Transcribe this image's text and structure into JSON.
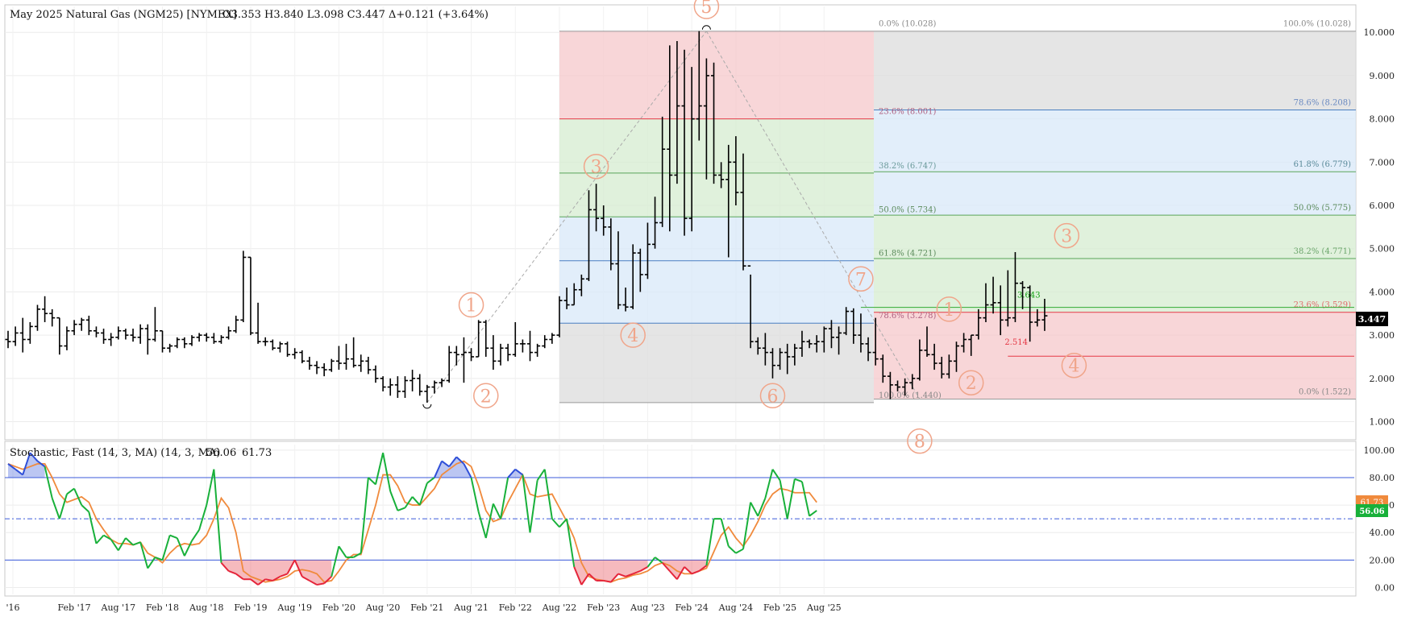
{
  "header": {
    "instrument": "May 2025 Natural Gas (NGM25) [NYMEX]",
    "ohlc_text": "O3.353  H3.840  L3.098  C3.447  Δ+0.121 (+3.64%)"
  },
  "last_price_tag": "3.447",
  "stoch_header": {
    "label": "Stochastic, Fast (14, 3, MA)  (14, 3, MA)",
    "k_text": "56.06",
    "d_text": "61.73"
  },
  "stoch_k_tag": "56.06",
  "stoch_d_tag": "61.73",
  "colors": {
    "up_text": "#11a011",
    "down_text": "#e8702a",
    "stoch_k": "#18b03a",
    "stoch_d": "#f08a3c",
    "overbought_fill": "#3b5bdb",
    "oversold_fill": "#e53946",
    "wave_label": "#f0a58a",
    "fib_red_zone": "#f6c8cb",
    "fib_green_zone": "#d6ecd0",
    "fib_blue_zone": "#d8e8f8",
    "fib_gray_zone": "#dcdcdc"
  },
  "chart_data": [
    {
      "type": "ohlc",
      "name": "price",
      "title": "May 2025 Natural Gas (NGM25) [NYMEX]",
      "x_tick_labels": [
        "'16",
        "Feb '17",
        "Aug '17",
        "Feb '18",
        "Aug '18",
        "Feb '19",
        "Aug '19",
        "Feb '20",
        "Aug '20",
        "Feb '21",
        "Aug '21",
        "Feb '22",
        "Aug '22",
        "Feb '23",
        "Aug '23",
        "Feb '24",
        "Aug '24",
        "Feb '25",
        "Aug '25"
      ],
      "y_ticks": [
        "1.000",
        "2.000",
        "3.000",
        "4.000",
        "5.000",
        "6.000",
        "7.000",
        "8.000",
        "9.000",
        "10.000"
      ],
      "ylim": [
        0.6,
        10.6
      ],
      "grid": true,
      "bars_monthly": [
        [
          2.9,
          3.1,
          2.7,
          2.85
        ],
        [
          2.85,
          3.2,
          2.75,
          3.05
        ],
        [
          3.05,
          3.4,
          2.6,
          2.9
        ],
        [
          2.9,
          3.3,
          2.8,
          3.2
        ],
        [
          3.2,
          3.7,
          3.1,
          3.6
        ],
        [
          3.6,
          3.9,
          3.3,
          3.5
        ],
        [
          3.5,
          3.6,
          3.2,
          3.4
        ],
        [
          3.4,
          3.4,
          2.55,
          2.75
        ],
        [
          2.75,
          3.2,
          2.65,
          3.1
        ],
        [
          3.1,
          3.35,
          3.0,
          3.25
        ],
        [
          3.25,
          3.4,
          3.1,
          3.35
        ],
        [
          3.35,
          3.45,
          3.0,
          3.1
        ],
        [
          3.1,
          3.2,
          2.95,
          3.05
        ],
        [
          3.05,
          3.15,
          2.8,
          2.9
        ],
        [
          2.9,
          3.05,
          2.75,
          2.95
        ],
        [
          2.95,
          3.2,
          2.9,
          3.1
        ],
        [
          3.1,
          3.15,
          2.9,
          3.0
        ],
        [
          3.0,
          3.15,
          2.85,
          2.95
        ],
        [
          2.95,
          3.25,
          2.8,
          3.15
        ],
        [
          3.15,
          3.25,
          2.55,
          2.9
        ],
        [
          2.9,
          3.65,
          2.85,
          3.1
        ],
        [
          3.1,
          3.1,
          2.6,
          2.7
        ],
        [
          2.7,
          2.8,
          2.6,
          2.75
        ],
        [
          2.75,
          2.95,
          2.7,
          2.9
        ],
        [
          2.9,
          2.95,
          2.7,
          2.8
        ],
        [
          2.8,
          3.0,
          2.75,
          2.95
        ],
        [
          2.95,
          3.05,
          2.85,
          3.0
        ],
        [
          3.0,
          3.05,
          2.85,
          2.95
        ],
        [
          2.95,
          3.05,
          2.8,
          2.85
        ],
        [
          2.85,
          3.0,
          2.8,
          2.95
        ],
        [
          2.95,
          3.2,
          2.9,
          3.1
        ],
        [
          3.1,
          3.45,
          3.05,
          3.35
        ],
        [
          3.35,
          4.95,
          3.3,
          4.8
        ],
        [
          4.8,
          4.8,
          3.0,
          3.05
        ],
        [
          3.05,
          3.75,
          2.8,
          2.85
        ],
        [
          2.85,
          2.95,
          2.75,
          2.85
        ],
        [
          2.85,
          2.9,
          2.65,
          2.7
        ],
        [
          2.7,
          2.85,
          2.6,
          2.8
        ],
        [
          2.8,
          2.85,
          2.5,
          2.55
        ],
        [
          2.55,
          2.7,
          2.45,
          2.6
        ],
        [
          2.6,
          2.65,
          2.35,
          2.4
        ],
        [
          2.4,
          2.5,
          2.2,
          2.3
        ],
        [
          2.3,
          2.4,
          2.1,
          2.25
        ],
        [
          2.25,
          2.35,
          2.05,
          2.2
        ],
        [
          2.2,
          2.45,
          2.15,
          2.4
        ],
        [
          2.4,
          2.75,
          2.2,
          2.35
        ],
        [
          2.35,
          2.8,
          2.2,
          2.45
        ],
        [
          2.45,
          2.95,
          2.25,
          2.3
        ],
        [
          2.3,
          2.55,
          2.15,
          2.4
        ],
        [
          2.4,
          2.5,
          2.1,
          2.2
        ],
        [
          2.2,
          2.3,
          1.9,
          2.0
        ],
        [
          2.0,
          2.05,
          1.7,
          1.8
        ],
        [
          1.8,
          2.0,
          1.6,
          1.85
        ],
        [
          1.85,
          2.05,
          1.55,
          1.7
        ],
        [
          1.7,
          2.05,
          1.55,
          1.95
        ],
        [
          1.95,
          2.2,
          1.7,
          2.0
        ],
        [
          2.0,
          2.1,
          1.6,
          1.7
        ],
        [
          1.7,
          1.85,
          1.44,
          1.8
        ],
        [
          1.8,
          1.95,
          1.65,
          1.9
        ],
        [
          1.9,
          2.0,
          1.8,
          1.95
        ],
        [
          1.95,
          2.75,
          1.9,
          2.6
        ],
        [
          2.6,
          2.75,
          2.3,
          2.55
        ],
        [
          2.55,
          2.95,
          1.9,
          2.6
        ],
        [
          2.6,
          2.7,
          2.4,
          2.5
        ],
        [
          2.5,
          3.35,
          2.5,
          3.3
        ],
        [
          3.3,
          3.35,
          2.5,
          2.7
        ],
        [
          2.7,
          3.0,
          2.2,
          2.4
        ],
        [
          2.4,
          2.8,
          2.3,
          2.7
        ],
        [
          2.7,
          2.8,
          2.4,
          2.55
        ],
        [
          2.55,
          3.3,
          2.5,
          2.8
        ],
        [
          2.8,
          2.9,
          2.6,
          2.8
        ],
        [
          2.8,
          3.1,
          2.4,
          2.6
        ],
        [
          2.6,
          2.8,
          2.5,
          2.75
        ],
        [
          2.75,
          3.0,
          2.7,
          2.9
        ],
        [
          2.9,
          3.05,
          2.8,
          3.0
        ],
        [
          3.0,
          3.9,
          2.95,
          3.8
        ],
        [
          3.8,
          4.1,
          3.6,
          3.7
        ],
        [
          3.7,
          4.2,
          3.7,
          4.05
        ],
        [
          4.05,
          4.4,
          3.9,
          4.3
        ],
        [
          4.3,
          6.35,
          4.25,
          5.9
        ],
        [
          5.9,
          6.5,
          5.4,
          5.7
        ],
        [
          5.7,
          6.0,
          5.3,
          5.5
        ],
        [
          5.5,
          5.7,
          4.5,
          4.65
        ],
        [
          4.65,
          5.4,
          3.6,
          3.7
        ],
        [
          3.7,
          4.1,
          3.55,
          3.65
        ],
        [
          3.65,
          5.1,
          3.6,
          4.9
        ],
        [
          4.9,
          5.0,
          4.0,
          4.4
        ],
        [
          4.4,
          5.6,
          4.3,
          5.1
        ],
        [
          5.1,
          6.2,
          5.0,
          5.6
        ],
        [
          5.6,
          8.05,
          5.5,
          7.3
        ],
        [
          7.3,
          9.7,
          5.4,
          6.7
        ],
        [
          6.7,
          9.8,
          6.5,
          8.3
        ],
        [
          8.3,
          9.6,
          5.3,
          5.7
        ],
        [
          5.7,
          9.2,
          5.4,
          8.0
        ],
        [
          8.0,
          10.03,
          7.5,
          8.3
        ],
        [
          8.3,
          9.4,
          6.6,
          9.0
        ],
        [
          9.0,
          9.3,
          6.5,
          6.7
        ],
        [
          6.7,
          7.0,
          6.4,
          6.6
        ],
        [
          6.6,
          7.4,
          4.8,
          7.0
        ],
        [
          7.0,
          7.6,
          6.0,
          6.3
        ],
        [
          6.3,
          7.2,
          4.5,
          4.6
        ],
        [
          4.6,
          4.4,
          2.7,
          2.85
        ],
        [
          2.85,
          2.95,
          2.55,
          2.7
        ],
        [
          2.7,
          3.05,
          2.3,
          2.6
        ],
        [
          2.6,
          2.7,
          2.0,
          2.3
        ],
        [
          2.3,
          2.7,
          2.2,
          2.6
        ],
        [
          2.6,
          2.8,
          2.1,
          2.5
        ],
        [
          2.5,
          2.8,
          2.3,
          2.7
        ],
        [
          2.7,
          3.1,
          2.5,
          2.85
        ],
        [
          2.85,
          2.9,
          2.7,
          2.8
        ],
        [
          2.8,
          3.0,
          2.6,
          2.85
        ],
        [
          2.85,
          3.2,
          2.6,
          3.15
        ],
        [
          3.15,
          3.35,
          2.7,
          2.95
        ],
        [
          2.95,
          3.2,
          2.55,
          3.05
        ],
        [
          3.05,
          3.65,
          3.0,
          3.55
        ],
        [
          3.55,
          3.62,
          2.8,
          3.0
        ],
        [
          3.0,
          3.5,
          2.6,
          2.8
        ],
        [
          2.8,
          2.95,
          2.4,
          2.6
        ],
        [
          2.6,
          3.4,
          2.3,
          2.45
        ],
        [
          2.45,
          2.55,
          1.9,
          2.05
        ],
        [
          2.05,
          2.15,
          1.52,
          1.85
        ],
        [
          1.85,
          1.95,
          1.7,
          1.8
        ],
        [
          1.8,
          2.0,
          1.6,
          1.9
        ],
        [
          1.9,
          2.1,
          1.75,
          2.0
        ],
        [
          2.0,
          2.9,
          1.95,
          2.65
        ],
        [
          2.65,
          3.2,
          2.5,
          2.55
        ],
        [
          2.55,
          2.8,
          2.2,
          2.35
        ],
        [
          2.35,
          2.5,
          2.0,
          2.1
        ],
        [
          2.1,
          2.55,
          2.0,
          2.4
        ],
        [
          2.4,
          2.85,
          2.15,
          2.75
        ],
        [
          2.75,
          3.05,
          2.6,
          2.9
        ],
        [
          2.9,
          3.0,
          2.52,
          3.0
        ],
        [
          3.0,
          3.6,
          2.9,
          3.4
        ],
        [
          3.4,
          4.2,
          3.3,
          3.7
        ],
        [
          3.7,
          4.35,
          3.5,
          3.75
        ],
        [
          3.75,
          4.15,
          3.0,
          3.35
        ],
        [
          3.35,
          4.5,
          3.2,
          3.4
        ],
        [
          3.4,
          4.92,
          3.3,
          4.2
        ],
        [
          4.2,
          4.25,
          3.6,
          4.1
        ],
        [
          4.1,
          4.15,
          2.85,
          3.3
        ],
        [
          3.3,
          3.6,
          3.2,
          3.35
        ],
        [
          3.353,
          3.84,
          3.098,
          3.447
        ]
      ],
      "last": 3.447
    },
    {
      "type": "line",
      "name": "stochastic",
      "title": "Stochastic, Fast (14, 3, MA)",
      "y_ticks": [
        "0.00",
        "20.00",
        "40.00",
        "60.00",
        "80.00",
        "100.00"
      ],
      "ylim": [
        -5,
        104
      ],
      "overbought": 80,
      "oversold": 20,
      "midline": 50,
      "series": [
        {
          "name": "%K",
          "values": [
            90,
            86,
            82,
            98,
            92,
            88,
            65,
            50,
            68,
            72,
            60,
            55,
            32,
            38,
            35,
            27,
            36,
            31,
            33,
            14,
            22,
            20,
            38,
            36,
            23,
            34,
            42,
            60,
            86,
            18,
            12,
            10,
            6,
            6,
            2,
            6,
            5,
            8,
            10,
            20,
            8,
            5,
            2,
            3,
            8,
            30,
            22,
            22,
            25,
            80,
            75,
            98,
            70,
            56,
            58,
            66,
            60,
            76,
            80,
            92,
            88,
            95,
            90,
            80,
            55,
            36,
            61,
            50,
            80,
            86,
            82,
            40,
            78,
            86,
            50,
            44,
            50,
            15,
            2,
            10,
            5,
            5,
            4,
            10,
            8,
            10,
            12,
            15,
            22,
            18,
            12,
            6,
            15,
            10,
            12,
            16,
            50,
            50,
            30,
            25,
            28,
            62,
            52,
            65,
            86,
            78,
            50,
            79,
            77,
            52,
            56
          ]
        },
        {
          "name": "%D",
          "values": [
            90,
            88,
            86,
            88,
            90,
            90,
            80,
            68,
            62,
            64,
            66,
            62,
            50,
            42,
            35,
            32,
            32,
            31,
            33,
            25,
            22,
            18,
            25,
            30,
            32,
            31,
            32,
            38,
            50,
            65,
            58,
            40,
            12,
            8,
            6,
            4,
            5,
            6,
            8,
            12,
            13,
            12,
            10,
            4,
            5,
            12,
            20,
            24,
            24,
            42,
            60,
            82,
            82,
            74,
            62,
            60,
            60,
            66,
            72,
            82,
            86,
            90,
            92,
            88,
            74,
            56,
            48,
            50,
            62,
            72,
            82,
            68,
            66,
            67,
            68,
            58,
            48,
            36,
            18,
            8,
            6,
            5,
            4,
            6,
            7,
            9,
            10,
            12,
            16,
            18,
            16,
            12,
            10,
            10,
            12,
            14,
            26,
            38,
            44,
            36,
            30,
            38,
            48,
            60,
            68,
            72,
            71,
            69,
            69,
            69,
            62
          ]
        }
      ]
    }
  ],
  "fib_sets": [
    {
      "from_price": 1.44,
      "to_price": 10.028,
      "levels": [
        {
          "ratio": 0.0,
          "label": "0.0% (10.028)",
          "price": 10.028
        },
        {
          "ratio": 0.236,
          "label": "23.6% (8.001)",
          "price": 8.001
        },
        {
          "ratio": 0.382,
          "label": "38.2% (6.747)",
          "price": 6.747
        },
        {
          "ratio": 0.5,
          "label": "50.0% (5.734)",
          "price": 5.734
        },
        {
          "ratio": 0.618,
          "label": "61.8% (4.721)",
          "price": 4.721
        },
        {
          "ratio": 0.786,
          "label": "78.6% (3.278)",
          "price": 3.278
        },
        {
          "ratio": 1.0,
          "label": "100.0% (1.440)",
          "price": 1.44
        }
      ]
    },
    {
      "from_price": 10.028,
      "to_price": 1.522,
      "levels": [
        {
          "ratio": 1.0,
          "label": "100.0% (10.028)",
          "price": 10.028
        },
        {
          "ratio": 0.786,
          "label": "78.6% (8.208)",
          "price": 8.208
        },
        {
          "ratio": 0.618,
          "label": "61.8% (6.779)",
          "price": 6.779
        },
        {
          "ratio": 0.5,
          "label": "50.0% (5.775)",
          "price": 5.775
        },
        {
          "ratio": 0.382,
          "label": "38.2% (4.771)",
          "price": 4.771
        },
        {
          "ratio": 0.236,
          "label": "23.6% (3.529)",
          "price": 3.529
        },
        {
          "ratio": 0.0,
          "label": "0.0% (1.522)",
          "price": 1.522
        }
      ]
    }
  ],
  "horizontal_markers": [
    {
      "label": "3.643",
      "price": 3.643,
      "color": "#11a011"
    },
    {
      "label": "2.514",
      "price": 2.514,
      "color": "#e53946"
    }
  ],
  "wave_labels": [
    {
      "text": "1",
      "bar": 63,
      "price": 3.7
    },
    {
      "text": "2",
      "bar": 65,
      "price": 1.6
    },
    {
      "text": "3",
      "bar": 80,
      "price": 6.9
    },
    {
      "text": "4",
      "bar": 85,
      "price": 3.0
    },
    {
      "text": "5",
      "bar": 95,
      "price": 10.6
    },
    {
      "text": "6",
      "bar": 104,
      "price": 1.6
    },
    {
      "text": "7",
      "bar": 116,
      "price": 4.3
    },
    {
      "text": "8",
      "bar": 124,
      "price": 0.55
    },
    {
      "text": "1",
      "bar": 128,
      "price": 3.6
    },
    {
      "text": "2",
      "bar": 131,
      "price": 1.9
    },
    {
      "text": "3",
      "bar": 144,
      "price": 5.3
    },
    {
      "text": "4",
      "bar": 145,
      "price": 2.3
    }
  ]
}
